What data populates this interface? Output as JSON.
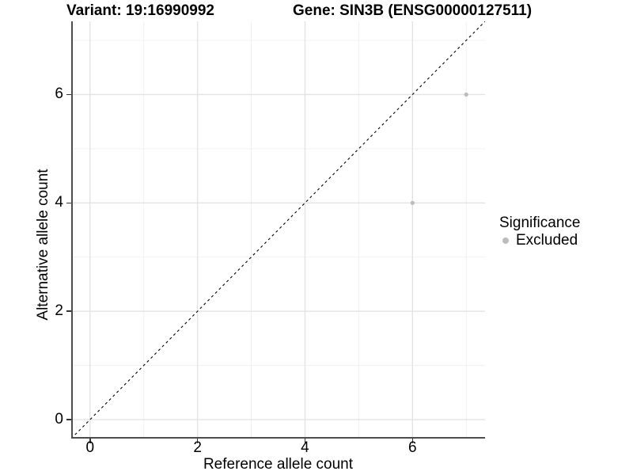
{
  "header": {
    "title_left": "Variant: 19:16990992",
    "title_right": "Gene: SIN3B (ENSG00000127511)"
  },
  "legend": {
    "title": "Significance",
    "items": [
      {
        "label": "Excluded",
        "color": "#bcbcbc"
      }
    ]
  },
  "chart_data": {
    "type": "scatter",
    "xlabel": "Reference allele count",
    "ylabel": "Alternative allele count",
    "xlim": [
      -0.35,
      7.35
    ],
    "ylim": [
      -0.35,
      7.35
    ],
    "x_ticks": [
      0,
      2,
      4,
      6
    ],
    "y_ticks": [
      0,
      2,
      4,
      6
    ],
    "x_minor_grid": [
      1,
      3,
      5,
      7
    ],
    "y_minor_grid": [
      1,
      3,
      5,
      7
    ],
    "grid": "on",
    "legend_position": "right",
    "series": [
      {
        "name": "Excluded",
        "color": "#bcbcbc",
        "point_radius": 2.6,
        "points": [
          {
            "x": 7,
            "y": 6
          },
          {
            "x": 6,
            "y": 4
          }
        ]
      }
    ],
    "reference_line": {
      "type": "identity",
      "style": "dashed",
      "color": "#000000",
      "slope": 1,
      "intercept": 0
    }
  },
  "colors": {
    "grid_major": "#e3e3e3",
    "grid_minor": "#f0f0f0",
    "axis_line": "#4d4d4d",
    "tick_mark": "#333333",
    "text": "#000000",
    "background": "#ffffff"
  }
}
